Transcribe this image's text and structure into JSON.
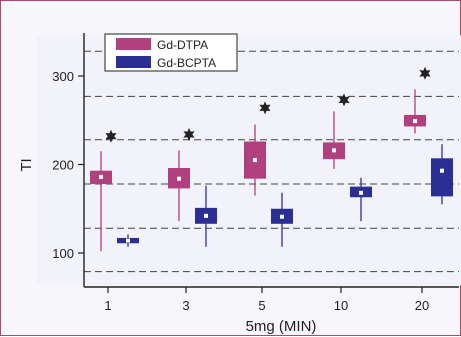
{
  "chart_data": {
    "type": "box",
    "title": "",
    "xlabel": "5mg (MIN)",
    "ylabel": "TI",
    "categories": [
      "1",
      "3",
      "5",
      "10",
      "20"
    ],
    "yticks": [
      100,
      200,
      300
    ],
    "ylim": [
      62,
      350
    ],
    "grid": "horizontal dashed",
    "legend_position": "top-left",
    "colors": {
      "Gd-DTPA": "#b0407e",
      "Gd-BCPTA": "#2b2f94",
      "star": "#222222",
      "grid": "#444444"
    },
    "series": [
      {
        "name": "Gd-DTPA",
        "boxes": [
          {
            "whisker_low": 102,
            "q1": 178,
            "median": 186,
            "q3": 193,
            "whisker_high": 215,
            "mean": 186
          },
          {
            "whisker_low": 136,
            "q1": 173,
            "median": 184,
            "q3": 196,
            "whisker_high": 216,
            "mean": 184
          },
          {
            "whisker_low": 165,
            "q1": 184,
            "median": 205,
            "q3": 226,
            "whisker_high": 245,
            "mean": 205
          },
          {
            "whisker_low": 195,
            "q1": 206,
            "median": 216,
            "q3": 225,
            "whisker_high": 260,
            "mean": 216
          },
          {
            "whisker_low": 235,
            "q1": 243,
            "median": 249,
            "q3": 256,
            "whisker_high": 285,
            "mean": 249
          }
        ]
      },
      {
        "name": "Gd-BCPTA",
        "boxes": [
          {
            "whisker_low": 107,
            "q1": 111,
            "median": 114,
            "q3": 117,
            "whisker_high": 121,
            "mean": 114
          },
          {
            "whisker_low": 107,
            "q1": 133,
            "median": 142,
            "q3": 151,
            "whisker_high": 176,
            "mean": 142
          },
          {
            "whisker_low": 107,
            "q1": 133,
            "median": 141,
            "q3": 150,
            "whisker_high": 168,
            "mean": 141
          },
          {
            "whisker_low": 136,
            "q1": 163,
            "median": 168,
            "q3": 175,
            "whisker_high": 185,
            "mean": 168
          },
          {
            "whisker_low": 155,
            "q1": 164,
            "median": 193,
            "q3": 207,
            "whisker_high": 223,
            "mean": 193
          }
        ]
      }
    ],
    "significance_stars": [
      232,
      234,
      264,
      273,
      303
    ],
    "grid_lines": [
      79,
      128,
      178,
      228,
      277,
      328
    ]
  }
}
